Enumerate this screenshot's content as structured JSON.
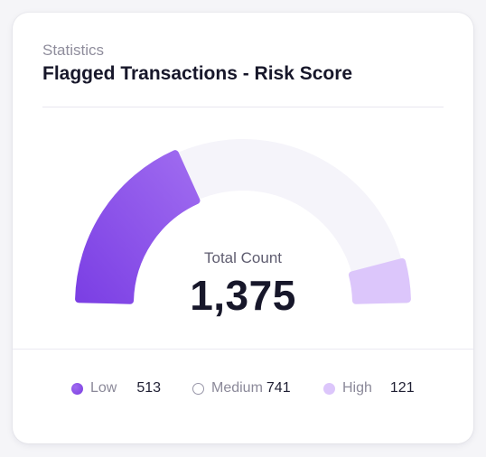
{
  "card": {
    "subtitle": "Statistics",
    "title": "Flagged Transactions - Risk Score"
  },
  "gauge": {
    "label": "Total Count",
    "total": "1,375"
  },
  "legend": [
    {
      "label": "Low",
      "value": "513"
    },
    {
      "label": "Medium",
      "value": "741"
    },
    {
      "label": "High",
      "value": "121"
    }
  ],
  "chart_data": {
    "type": "pie",
    "categories": [
      "Low",
      "Medium",
      "High"
    ],
    "values": [
      513,
      741,
      121
    ],
    "total": 1375
  },
  "colors": {
    "low": "#7b3fe4",
    "low_light": "#a06af0",
    "medium_track": "#f5f4fa",
    "high": "#dcc6fb"
  }
}
